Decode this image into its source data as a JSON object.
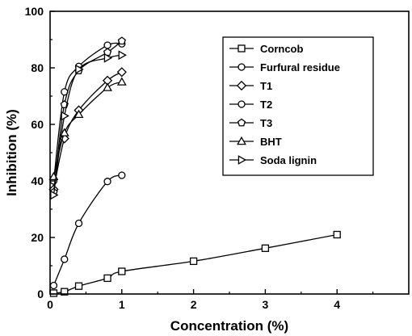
{
  "chart_data": {
    "type": "line",
    "title": "",
    "xlabel": "Concentration (%)",
    "ylabel": "Inhibition (%)",
    "xlim": [
      0,
      5
    ],
    "ylim": [
      0,
      100
    ],
    "x_ticks": [
      0,
      1,
      2,
      3,
      4
    ],
    "y_ticks": [
      0,
      20,
      40,
      60,
      80,
      100
    ],
    "grid": false,
    "legend_position": "top-right",
    "series": [
      {
        "name": "Corncob",
        "marker": "square",
        "x": [
          0.05,
          0.2,
          0.4,
          0.8,
          1.0,
          2.0,
          3.0,
          4.0
        ],
        "y": [
          0.3,
          0.8,
          2.8,
          5.6,
          8.0,
          11.6,
          16.2,
          21.0
        ]
      },
      {
        "name": "Furfural residue",
        "marker": "circle",
        "x": [
          0.05,
          0.2,
          0.4,
          0.8,
          1.0
        ],
        "y": [
          3.0,
          12.3,
          25.0,
          39.8,
          42.0
        ]
      },
      {
        "name": "T1",
        "marker": "diamond",
        "x": [
          0.05,
          0.2,
          0.4,
          0.8,
          1.0
        ],
        "y": [
          37.0,
          55.0,
          65.0,
          75.5,
          78.5
        ]
      },
      {
        "name": "T2",
        "marker": "circle",
        "x": [
          0.05,
          0.2,
          0.4,
          0.8,
          1.0
        ],
        "y": [
          40.0,
          71.5,
          80.5,
          88.0,
          88.5
        ]
      },
      {
        "name": "T3",
        "marker": "pentagon",
        "x": [
          0.05,
          0.2,
          0.4,
          0.8,
          1.0
        ],
        "y": [
          36.0,
          67.0,
          79.0,
          85.5,
          89.5
        ]
      },
      {
        "name": "BHT",
        "marker": "triangle-up",
        "x": [
          0.05,
          0.2,
          0.4,
          0.8,
          1.0
        ],
        "y": [
          41.5,
          57.0,
          63.5,
          73.0,
          75.0
        ]
      },
      {
        "name": "Soda lignin",
        "marker": "triangle-right",
        "x": [
          0.05,
          0.2,
          0.4,
          0.8,
          1.0
        ],
        "y": [
          35.0,
          63.0,
          79.5,
          83.5,
          84.5
        ]
      }
    ]
  }
}
